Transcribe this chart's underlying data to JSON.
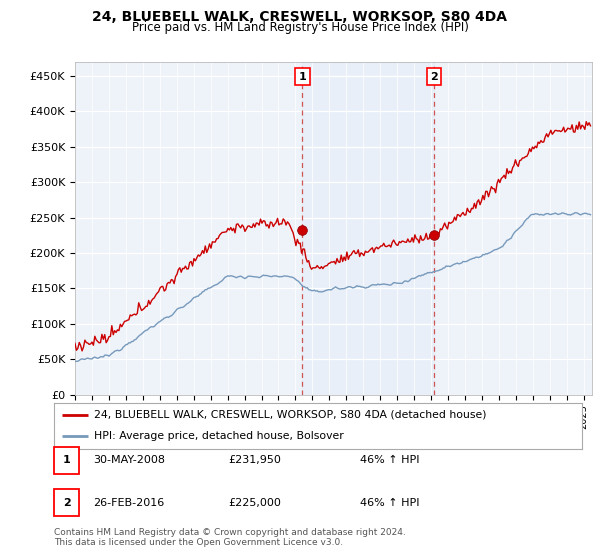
{
  "title": "24, BLUEBELL WALK, CRESWELL, WORKSOP, S80 4DA",
  "subtitle": "Price paid vs. HM Land Registry's House Price Index (HPI)",
  "yticks": [
    0,
    50000,
    100000,
    150000,
    200000,
    250000,
    300000,
    350000,
    400000,
    450000
  ],
  "ytick_labels": [
    "£0",
    "£50K",
    "£100K",
    "£150K",
    "£200K",
    "£250K",
    "£300K",
    "£350K",
    "£400K",
    "£450K"
  ],
  "xlim_start": 1995.0,
  "xlim_end": 2025.5,
  "ylim_min": 0,
  "ylim_max": 470000,
  "red_color": "#cc0000",
  "blue_color": "#7799bb",
  "blue_fill": "#dde8f5",
  "grid_color": "#cccccc",
  "plot_bg_color": "#eef3fa",
  "marker1_x": 2008.415,
  "marker1_y": 231950,
  "marker2_x": 2016.16,
  "marker2_y": 225000,
  "dashed_line1_x": 2008.415,
  "dashed_line2_x": 2016.16,
  "legend_line1": "24, BLUEBELL WALK, CRESWELL, WORKSOP, S80 4DA (detached house)",
  "legend_line2": "HPI: Average price, detached house, Bolsover",
  "table_row1": [
    "1",
    "30-MAY-2008",
    "£231,950",
    "46% ↑ HPI"
  ],
  "table_row2": [
    "2",
    "26-FEB-2016",
    "£225,000",
    "46% ↑ HPI"
  ],
  "footnote": "Contains HM Land Registry data © Crown copyright and database right 2024.\nThis data is licensed under the Open Government Licence v3.0."
}
